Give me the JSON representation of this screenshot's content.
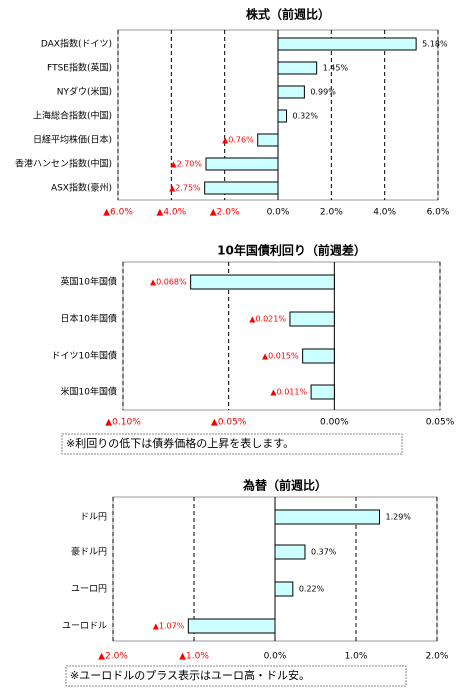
{
  "chart_data": [
    {
      "type": "bar",
      "orientation": "horizontal",
      "title": "株式（前週比）",
      "categories": [
        "DAX指数(ドイツ)",
        "FTSE指数(英国)",
        "NYダウ(米国)",
        "上海総合指数(中国)",
        "日経平均株価(日本)",
        "香港ハンセン指数(中国)",
        "ASX指数(豪州)"
      ],
      "values": [
        5.18,
        1.45,
        0.99,
        0.32,
        -0.76,
        -2.7,
        -2.75
      ],
      "value_labels": [
        "5.18%",
        "1.45%",
        "0.99%",
        "0.32%",
        "▲0.76%",
        "▲2.70%",
        "▲2.75%"
      ],
      "color": "#ccffff",
      "negative_color": "#ff0000",
      "xlim": [
        -6,
        6
      ],
      "xticks": [
        {
          "value": -6,
          "label": "▲6.0%"
        },
        {
          "value": -4,
          "label": "▲4.0%"
        },
        {
          "value": -2,
          "label": "▲2.0%"
        },
        {
          "value": 0,
          "label": "0.0%"
        },
        {
          "value": 2,
          "label": "2.0%"
        },
        {
          "value": 4,
          "label": "4.0%"
        },
        {
          "value": 6,
          "label": "6.0%"
        }
      ],
      "grid": true
    },
    {
      "type": "bar",
      "orientation": "horizontal",
      "title": "10年国債利回り（前週差）",
      "categories": [
        "英国10年国債",
        "日本10年国債",
        "ドイツ10年国債",
        "米国10年国債"
      ],
      "values": [
        -0.068,
        -0.021,
        -0.015,
        -0.011
      ],
      "value_labels": [
        "▲0.068%",
        "▲0.021%",
        "▲0.015%",
        "▲0.011%"
      ],
      "color": "#ccffff",
      "negative_color": "#ff0000",
      "xlim": [
        -0.1,
        0.05
      ],
      "xticks": [
        {
          "value": -0.1,
          "label": "▲0.10%"
        },
        {
          "value": -0.05,
          "label": "▲0.05%"
        },
        {
          "value": 0,
          "label": "0.00%"
        },
        {
          "value": 0.05,
          "label": "0.05%"
        }
      ],
      "grid": true,
      "note": "※利回りの低下は債券価格の上昇を表します。"
    },
    {
      "type": "bar",
      "orientation": "horizontal",
      "title": "為替（前週比）",
      "categories": [
        "ドル円",
        "豪ドル円",
        "ユーロ円",
        "ユーロドル"
      ],
      "values": [
        1.29,
        0.37,
        0.22,
        -1.07
      ],
      "value_labels": [
        "1.29%",
        "0.37%",
        "0.22%",
        "▲1.07%"
      ],
      "color": "#ccffff",
      "negative_color": "#ff0000",
      "xlim": [
        -2,
        2
      ],
      "xticks": [
        {
          "value": -2,
          "label": "▲2.0%"
        },
        {
          "value": -1,
          "label": "▲1.0%"
        },
        {
          "value": 0,
          "label": "0.0%"
        },
        {
          "value": 1,
          "label": "1.0%"
        },
        {
          "value": 2,
          "label": "2.0%"
        }
      ],
      "grid": true,
      "note": "※ユーロドルのプラス表示はユーロ高・ドル安。"
    }
  ]
}
